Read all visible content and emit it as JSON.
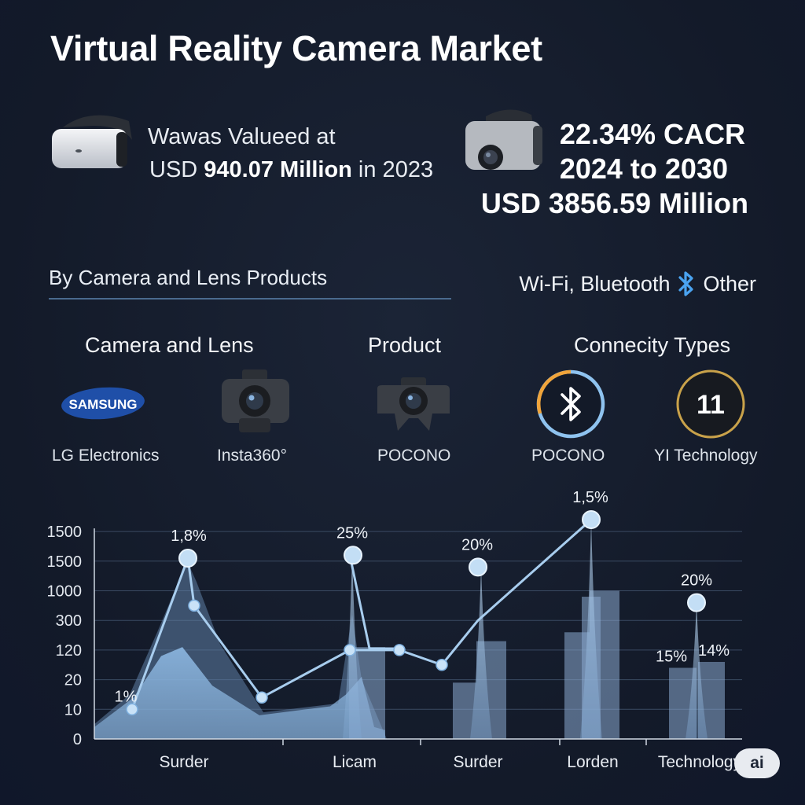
{
  "title": "Virtual Reality Camera Market",
  "stats": {
    "left_line1": "Wawas Valueed at",
    "left_line2_prefix": "USD ",
    "left_line2_value": "940.07 Million",
    "left_line2_suffix": " in 2023",
    "right_line1": "22.34% CACR",
    "right_line2": "2024 to 2030",
    "right_line3": "USD 3856.59 Million"
  },
  "section_label": "By Camera and Lens Products",
  "connectivity": {
    "left": "Wi-Fi, Bluetooth",
    "right": "Other"
  },
  "column_heads": [
    "Camera and Lens",
    "Product",
    "Connecity Types"
  ],
  "brands": {
    "samsung_logo_text": "SAMSUNG",
    "yi_logo_text": "11",
    "labels": [
      "LG Electronics",
      "Insta360°",
      "POCONO",
      "POCONO",
      "YI Technology"
    ]
  },
  "badge": "ai",
  "icons": [
    "vr-headset-icon",
    "vr-camera-icon",
    "samsung-logo",
    "camera-icon",
    "camera-icon",
    "bluetooth-icon",
    "yi-logo"
  ],
  "colors": {
    "background": "#141b2b",
    "line": "#a8cdee",
    "area": "#8db8e2",
    "bar": "#8aa9cf"
  },
  "chart_data": {
    "type": "line",
    "y_ticks": [
      "0",
      "10",
      "20",
      "120",
      "300",
      "1000",
      "1500",
      "1500"
    ],
    "x_ticks": [
      "Surder",
      "Licam",
      "Surder",
      "Lorden",
      "Technology"
    ],
    "grid": true,
    "series": [
      {
        "values": [
          1,
          6.1,
          6.5,
          4.8,
          2.5,
          3.5,
          4.2,
          6.2,
          4.3,
          4.3,
          4.4,
          2.4,
          5.8,
          7.4
        ]
      }
    ],
    "highlights": [
      {
        "value": 1,
        "label": "1%"
      },
      {
        "value": 6.1,
        "label": "1,8%"
      },
      {
        "value": 6.2,
        "label": "25%"
      },
      {
        "value": 5.8,
        "label": "20%"
      },
      {
        "value": 7.4,
        "label": "1,5%"
      }
    ],
    "bars": [
      {
        "value": 3.1,
        "label": ""
      },
      {
        "value": 1.9,
        "label": ""
      },
      {
        "value": 3.3,
        "label": ""
      },
      {
        "value": 3.6,
        "label": ""
      },
      {
        "value": 5.0,
        "label": ""
      },
      {
        "value": 4.8,
        "label": ""
      },
      {
        "value": 2.4,
        "label": "15%"
      },
      {
        "value": 2.6,
        "label": "14%"
      }
    ],
    "spike_point": {
      "value": 4.6,
      "label": "20%"
    }
  }
}
